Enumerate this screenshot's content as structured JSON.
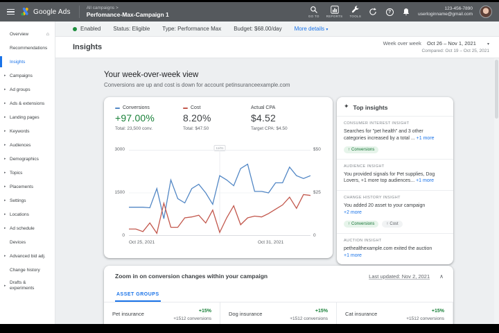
{
  "app_bar": {
    "product": "Google Ads",
    "breadcrumb": "All campaigns >",
    "campaign": "Perfomance-Max-Campaign 1",
    "nav_goto": "GO TO",
    "nav_reports": "REPORTS",
    "nav_tools": "TOOLS",
    "help_glyph": "?",
    "phone": "123-456-7890",
    "email": "userloginname@gmail.com"
  },
  "status_bar": {
    "enabled": "Enabled",
    "status": "Status: Eligible",
    "type": "Type: Performance Max",
    "budget": "Budget: $68.00/day",
    "more_details": "More details",
    "caret": "▾"
  },
  "page": {
    "title": "Insights"
  },
  "date_range": {
    "label": "Week over week",
    "range": "Oct 26 – Nov 1, 2021",
    "caret": "▾",
    "compared": "Compared: Oct 19 – Oct 25, 2021"
  },
  "sidebar": {
    "items": [
      {
        "arrow": "",
        "label": "Overview",
        "home": "⌂"
      },
      {
        "arrow": "",
        "label": "Recommendations"
      },
      {
        "arrow": "",
        "label": "Insights"
      },
      {
        "arrow": "▸",
        "label": "Campaigns"
      },
      {
        "arrow": "▸",
        "label": "Ad groups"
      },
      {
        "arrow": "▸",
        "label": "Ads & extensions"
      },
      {
        "arrow": "▸",
        "label": "Landing pages"
      },
      {
        "arrow": "▸",
        "label": "Keywords"
      },
      {
        "arrow": "▸",
        "label": "Audiences"
      },
      {
        "arrow": "▸",
        "label": "Demographics"
      },
      {
        "arrow": "▸",
        "label": "Topics"
      },
      {
        "arrow": "▸",
        "label": "Placements"
      },
      {
        "arrow": "▸",
        "label": "Settings"
      },
      {
        "arrow": "▸",
        "label": "Locations"
      },
      {
        "arrow": "▸",
        "label": "Ad schedule"
      },
      {
        "arrow": "",
        "label": "Devices"
      },
      {
        "arrow": "▸",
        "label": "Advanced bid adj."
      },
      {
        "arrow": "",
        "label": "Change history"
      },
      {
        "arrow": "▸",
        "label": "Drafts &\nexperiments"
      }
    ]
  },
  "wow": {
    "title": "Your week-over-week view",
    "subtitle": "Conversions are up and cost is down for account petinsuranceexample.com",
    "metrics": [
      {
        "legend": "Conversions",
        "value": "+97.00%",
        "sub": "Total: 23,500 conv."
      },
      {
        "legend": "Cost",
        "value": "8.20%",
        "sub": "Total: $47.50"
      },
      {
        "legend": "Actual CPA",
        "value": "$4.52",
        "sub": "Target CPA: $4.50"
      }
    ]
  },
  "chart_data": {
    "type": "line",
    "title": "Week-over-week conversions and cost",
    "x_labels": [
      "Oct 25, 2021",
      "Oct 31, 2021"
    ],
    "marker_label": "11/01",
    "yticks_left": [
      "3000",
      "1500",
      "0"
    ],
    "yticks_right": [
      "$50",
      "$25",
      "0"
    ],
    "grid": true,
    "series": [
      {
        "name": "Conversions",
        "color": "#5287c5",
        "axis": "left",
        "ylim": [
          0,
          3000
        ],
        "values": [
          1000,
          1000,
          1000,
          980,
          1650,
          600,
          1950,
          1300,
          1150,
          1650,
          1800,
          1500,
          1100,
          2100,
          1950,
          1750,
          2350,
          2500,
          1550,
          1550,
          1500,
          1850,
          1850,
          2400,
          2100,
          2000,
          2100
        ]
      },
      {
        "name": "Cost",
        "color": "#c2574c",
        "axis": "right",
        "ylim": [
          0,
          50
        ],
        "values": [
          4,
          4,
          2.5,
          7.5,
          1.5,
          19,
          5,
          5,
          10.5,
          11,
          12,
          7.5,
          15,
          2,
          10.5,
          17.5,
          6.5,
          10.5,
          11.5,
          11,
          13,
          15.5,
          18,
          22.5,
          16,
          24,
          23.5
        ]
      }
    ]
  },
  "top_insights": {
    "icon": "✦",
    "title": "Top insights",
    "sections": [
      {
        "category": "CONSUMER INTEREST INSIGHT",
        "text": "Searches for \"pet health\" and 3 other categories increased by a total ... ",
        "link": "+1 more",
        "chips": [
          {
            "arrow": "↑",
            "label": "Conversions"
          }
        ]
      },
      {
        "category": "AUDIENCE INSIGHT",
        "text": "You provided signals for Pet supplies, Dog Lovers, +1 more top audiences... ",
        "link": "+1 more",
        "chips": []
      },
      {
        "category": "CHANGE HISTORY INSIGHT",
        "text": "You added 20 asset to your campaign",
        "link": "+2 more",
        "chips": [
          {
            "arrow": "↑",
            "label": "Conversions"
          },
          {
            "arrow": "↑",
            "label": "Cost"
          }
        ]
      },
      {
        "category": "AUCTION INSIGHT",
        "text": "pethealthexample.com exited the auction",
        "link": "+1 more",
        "chips": []
      }
    ]
  },
  "zoom_card": {
    "title": "Zoom in on conversion changes within your campaign",
    "updated": "Last updated: Nov 2, 2021",
    "collapse_glyph": "∧",
    "tab": "ASSET GROUPS",
    "groups": [
      {
        "name": "Pet insurance",
        "change": "+15%",
        "conversions": "+1512 conversions"
      },
      {
        "name": "Dog insurance",
        "change": "+15%",
        "conversions": "+1512 conversions"
      },
      {
        "name": "Cat insurance",
        "change": "+15%",
        "conversions": "+1512 conversions"
      }
    ]
  }
}
